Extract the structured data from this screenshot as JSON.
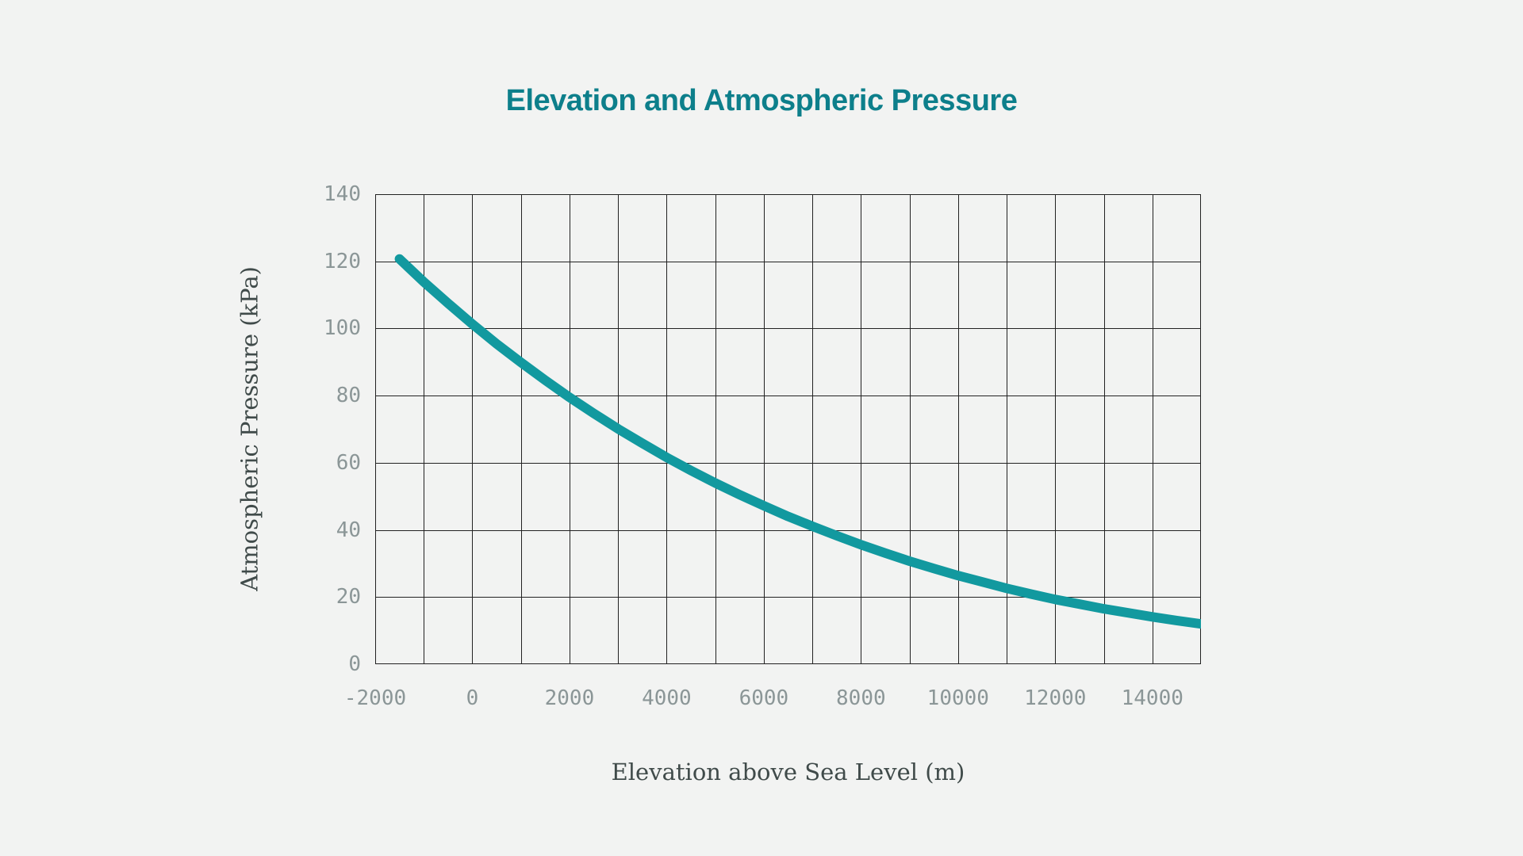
{
  "title": "Elevation and Atmospheric Pressure",
  "colors": {
    "background": "#f2f3f2",
    "title": "#0d7f8b",
    "curve": "#12999f",
    "grid": "#222222",
    "tick_label": "#8b9697",
    "axis_label": "#404b4a"
  },
  "chart_data": {
    "type": "line",
    "title": "Elevation and Atmospheric Pressure",
    "xlabel": "Elevation above Sea Level (m)",
    "ylabel": "Atmospheric Pressure (kPa)",
    "xlim": [
      -2000,
      15000
    ],
    "ylim": [
      0,
      140
    ],
    "x_ticks": [
      -2000,
      0,
      2000,
      4000,
      6000,
      8000,
      10000,
      12000,
      14000
    ],
    "y_ticks": [
      0,
      20,
      40,
      60,
      80,
      100,
      120,
      140
    ],
    "x_grid_step": 1000,
    "y_grid_step": 20,
    "grid": true,
    "legend": false,
    "series": [
      {
        "name": "Atmospheric Pressure",
        "x": [
          -1500,
          -1000,
          -500,
          0,
          500,
          1000,
          1500,
          2000,
          2500,
          3000,
          3500,
          4000,
          4500,
          5000,
          5500,
          6000,
          6500,
          7000,
          7500,
          8000,
          8500,
          9000,
          9500,
          10000,
          10500,
          11000,
          11500,
          12000,
          12500,
          13000,
          13500,
          14000,
          14500,
          15000
        ],
        "y": [
          120.7,
          113.9,
          107.5,
          101.3,
          95.4,
          89.9,
          84.6,
          79.5,
          74.7,
          70.1,
          65.8,
          61.6,
          57.7,
          54.0,
          50.5,
          47.2,
          44.0,
          41.1,
          38.3,
          35.6,
          33.1,
          30.7,
          28.5,
          26.4,
          24.5,
          22.6,
          20.9,
          19.3,
          17.9,
          16.5,
          15.3,
          14.1,
          13.0,
          12.0
        ]
      }
    ]
  }
}
